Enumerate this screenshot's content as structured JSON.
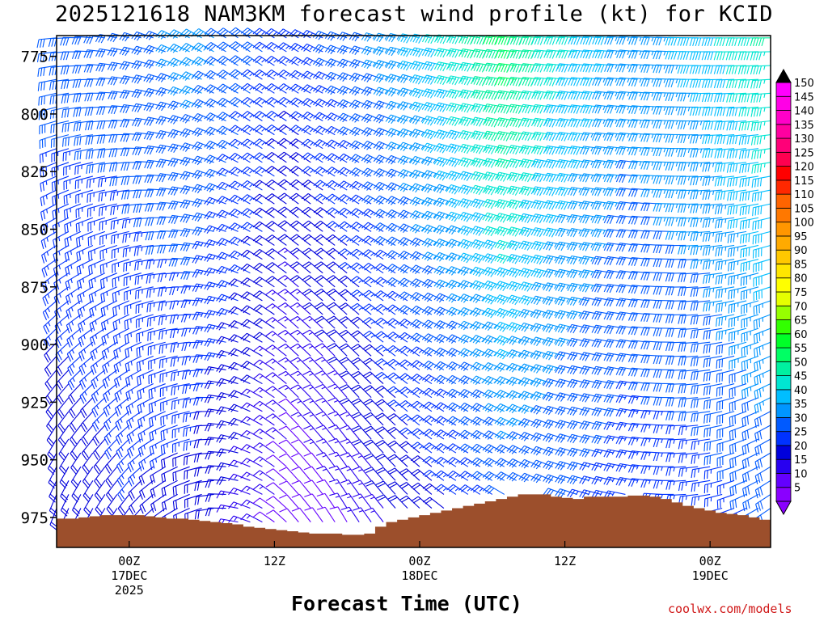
{
  "chart_data": {
    "type": "wind-barb-profile",
    "title": "2025121618 NAM3KM forecast wind profile (kt) for KCID",
    "xlabel": "Forecast Time (UTC)",
    "ylabel": "",
    "x_ticks": [
      {
        "hour": 6,
        "lines": [
          "00Z",
          "17DEC",
          "2025"
        ]
      },
      {
        "hour": 18,
        "lines": [
          "12Z"
        ]
      },
      {
        "hour": 30,
        "lines": [
          "00Z",
          "18DEC"
        ]
      },
      {
        "hour": 42,
        "lines": [
          "12Z"
        ]
      },
      {
        "hour": 54,
        "lines": [
          "00Z",
          "19DEC"
        ]
      }
    ],
    "xlim_hours": [
      0,
      59
    ],
    "y_ticks": [
      775,
      800,
      825,
      850,
      875,
      900,
      925,
      950,
      975
    ],
    "ylim_hpa": [
      766,
      988
    ],
    "colorbar": {
      "unit": "kt",
      "levels": [
        5,
        10,
        15,
        20,
        25,
        30,
        35,
        40,
        45,
        50,
        55,
        60,
        65,
        70,
        75,
        80,
        85,
        90,
        95,
        100,
        105,
        110,
        115,
        120,
        125,
        130,
        135,
        140,
        145,
        150
      ],
      "colors": [
        "#8a00ff",
        "#6400ff",
        "#2800f0",
        "#0000dc",
        "#0032ff",
        "#005aff",
        "#0096ff",
        "#00beff",
        "#00e6d2",
        "#00f0a0",
        "#00ff64",
        "#00ff28",
        "#32ff00",
        "#96ff00",
        "#e6ff00",
        "#ffff00",
        "#ffe600",
        "#ffc800",
        "#ffaa00",
        "#ff9600",
        "#ff7800",
        "#ff6400",
        "#ff2800",
        "#ff0000",
        "#ff0050",
        "#ff0078",
        "#ff00a0",
        "#ff00c8",
        "#ff00e6",
        "#ff00ff"
      ]
    },
    "surface_pressure_hpa": [
      975.5,
      975.5,
      975,
      974.5,
      974,
      974,
      974,
      974,
      974.5,
      975,
      975.5,
      975.5,
      976,
      976.5,
      977,
      977.5,
      978,
      979,
      979.5,
      980,
      980.5,
      981,
      981.5,
      982,
      982,
      982,
      982.5,
      982.5,
      982,
      979,
      977,
      976,
      975,
      974,
      973,
      972,
      971,
      970,
      969,
      968,
      967,
      966,
      965,
      965,
      965,
      966,
      966.5,
      967,
      966,
      966,
      966,
      966,
      965.5,
      965.5,
      966,
      967,
      968.5,
      970,
      971,
      972,
      973,
      973.5,
      974,
      975,
      976
    ],
    "barbs": [
      {
        "hour": 0,
        "dir_surface": 200,
        "dir_top": 265,
        "spd_surface": 18,
        "spd_top": 30
      },
      {
        "hour": 6,
        "dir_surface": 215,
        "dir_top": 285,
        "spd_surface": 22,
        "spd_top": 30
      },
      {
        "hour": 12,
        "dir_surface": 250,
        "dir_top": 300,
        "spd_surface": 20,
        "spd_top": 35
      },
      {
        "hour": 16,
        "dir_surface": 290,
        "dir_top": 305,
        "spd_surface": 15,
        "spd_top": 30
      },
      {
        "hour": 20,
        "dir_surface": 320,
        "dir_top": 300,
        "spd_surface": 8,
        "spd_top": 25
      },
      {
        "hour": 24,
        "dir_surface": 330,
        "dir_top": 290,
        "spd_surface": 12,
        "spd_top": 30
      },
      {
        "hour": 28,
        "dir_surface": 320,
        "dir_top": 285,
        "spd_surface": 18,
        "spd_top": 35
      },
      {
        "hour": 33,
        "dir_surface": 305,
        "dir_top": 280,
        "spd_surface": 22,
        "spd_top": 45
      },
      {
        "hour": 38,
        "dir_surface": 300,
        "dir_top": 275,
        "spd_surface": 30,
        "spd_top": 55
      },
      {
        "hour": 42,
        "dir_surface": 290,
        "dir_top": 275,
        "spd_surface": 28,
        "spd_top": 45
      },
      {
        "hour": 48,
        "dir_surface": 280,
        "dir_top": 275,
        "spd_surface": 25,
        "spd_top": 35
      },
      {
        "hour": 54,
        "dir_surface": 260,
        "dir_top": 270,
        "spd_surface": 25,
        "spd_top": 40
      },
      {
        "hour": 59,
        "dir_surface": 235,
        "dir_top": 270,
        "spd_surface": 28,
        "spd_top": 48
      }
    ]
  },
  "credit": "coolwx.com/models"
}
